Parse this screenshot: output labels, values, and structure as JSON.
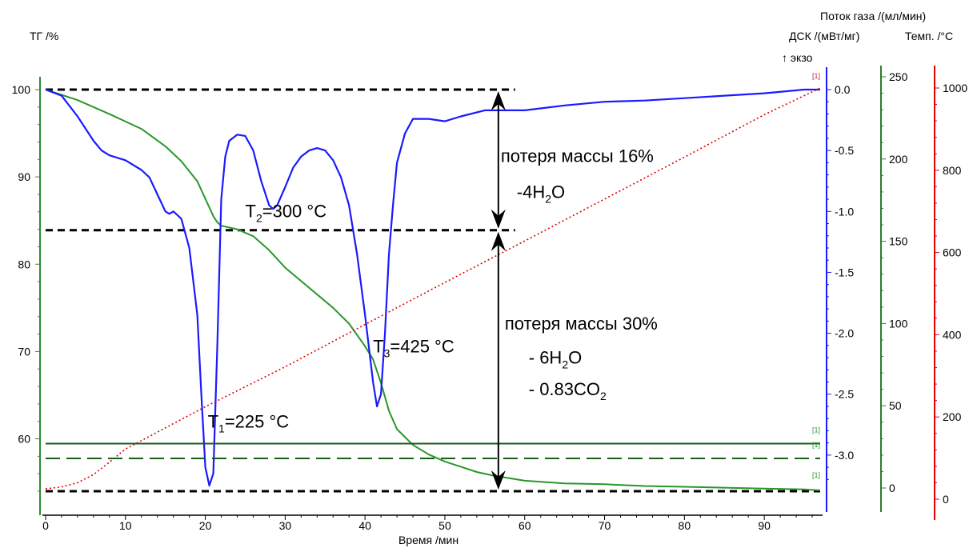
{
  "chart_data": {
    "type": "line",
    "title": "",
    "xlabel": "Время /мин",
    "x_ticks": [
      0,
      10,
      20,
      30,
      40,
      50,
      60,
      70,
      80,
      90
    ],
    "xlim": [
      0,
      97
    ],
    "axes": {
      "tg": {
        "label": "ТГ /%",
        "ticks": [
          60,
          70,
          80,
          90,
          100
        ],
        "ylim": [
          54,
          100
        ],
        "color": "#2e8b2e"
      },
      "dsc": {
        "label": "ДСК /(мВт/мг)",
        "exo": "↑ экзо",
        "ticks": [
          "0.0",
          "-0.5",
          "-1.0",
          "-1.5",
          "-2.0",
          "-2.5",
          "-3.0"
        ],
        "ylim": [
          -3.27,
          0.0
        ],
        "color": "#1a1aff"
      },
      "gas": {
        "label": "Поток газа /(мл/мин)",
        "ticks": [
          0,
          50,
          100,
          150,
          200,
          250
        ],
        "ylim": [
          0,
          250
        ],
        "color": "#2e7d2e"
      },
      "temp": {
        "label": "Темп. /°C",
        "ticks": [
          0,
          200,
          400,
          600,
          800,
          1000
        ],
        "ylim": [
          0,
          1000
        ],
        "color": "#e00000"
      }
    },
    "series": [
      {
        "key": "tg",
        "axis": "tg",
        "color": "#2a962a",
        "style": "solid",
        "x": [
          0,
          4,
          8,
          12,
          15,
          17,
          19,
          20,
          21,
          21.5,
          22,
          24,
          26,
          28,
          30,
          33,
          36,
          38,
          40,
          41,
          42,
          43,
          44,
          46,
          48,
          50,
          52,
          54,
          56,
          58,
          60,
          65,
          70,
          75,
          80,
          85,
          90,
          95,
          97
        ],
        "y": [
          100,
          98.8,
          97.2,
          95.5,
          93.5,
          91.8,
          89.5,
          87.5,
          85.5,
          84.8,
          84.4,
          84,
          83.2,
          81.6,
          79.6,
          77.3,
          75,
          73.2,
          70.6,
          69.1,
          66.4,
          63.2,
          61.1,
          59.3,
          58.2,
          57.4,
          56.8,
          56.2,
          55.8,
          55.5,
          55.2,
          54.9,
          54.8,
          54.6,
          54.5,
          54.4,
          54.3,
          54.2,
          54.1
        ]
      },
      {
        "key": "dsc",
        "axis": "dsc",
        "color": "#1a1aff",
        "style": "solid",
        "x": [
          0,
          2,
          4,
          6,
          7,
          8,
          10,
          12,
          13,
          14,
          15,
          15.5,
          16,
          17,
          18,
          19,
          19.5,
          20,
          20.5,
          21,
          21.5,
          22,
          22.5,
          23,
          24,
          25,
          26,
          27,
          28,
          28.5,
          29,
          30,
          31,
          32,
          33,
          34,
          35,
          36,
          37,
          38,
          39,
          40,
          41,
          41.5,
          42,
          42.5,
          43,
          43.5,
          44,
          45,
          46,
          48,
          50,
          52,
          55,
          58,
          60,
          65,
          70,
          75,
          80,
          85,
          90,
          95,
          97
        ],
        "y": [
          0,
          -0.05,
          -0.22,
          -0.42,
          -0.5,
          -0.54,
          -0.58,
          -0.66,
          -0.72,
          -0.86,
          -1.0,
          -1.02,
          -1.0,
          -1.06,
          -1.3,
          -1.85,
          -2.5,
          -3.1,
          -3.25,
          -3.15,
          -2.1,
          -0.9,
          -0.55,
          -0.42,
          -0.37,
          -0.38,
          -0.5,
          -0.75,
          -0.95,
          -0.98,
          -0.95,
          -0.8,
          -0.64,
          -0.55,
          -0.5,
          -0.48,
          -0.5,
          -0.58,
          -0.72,
          -0.95,
          -1.35,
          -1.85,
          -2.4,
          -2.6,
          -2.5,
          -2.0,
          -1.35,
          -0.95,
          -0.6,
          -0.36,
          -0.24,
          -0.24,
          -0.26,
          -0.22,
          -0.17,
          -0.17,
          -0.17,
          -0.13,
          -0.1,
          -0.09,
          -0.07,
          -0.05,
          -0.03,
          0,
          0
        ]
      },
      {
        "key": "temp",
        "axis": "temp",
        "color": "#e00000",
        "style": "dotted",
        "x": [
          0,
          2,
          4,
          6,
          8,
          10,
          20,
          30,
          40,
          50,
          60,
          70,
          80,
          90,
          97
        ],
        "y": [
          25,
          30,
          40,
          60,
          90,
          122,
          225,
          322,
          425,
          527,
          628,
          730,
          832,
          935,
          1000
        ]
      },
      {
        "key": "gas_solid",
        "axis": "gas",
        "color": "#1a5c1a",
        "style": "solid",
        "x": [
          0,
          97
        ],
        "y": [
          27,
          27
        ]
      },
      {
        "key": "gas_dashed",
        "axis": "gas",
        "color": "#1a5c1a",
        "style": "dashed",
        "x": [
          0,
          97
        ],
        "y": [
          18,
          18
        ]
      }
    ],
    "reference_lines": [
      {
        "axis": "tg",
        "y": 100,
        "x_start": 0,
        "x_end": 58.8
      },
      {
        "axis": "tg",
        "y": 83.9,
        "x_start": 0,
        "x_end": 58.8
      },
      {
        "axis": "tg",
        "y": 54,
        "x_start": 0,
        "x_end": 97
      }
    ],
    "arrows": [
      {
        "x": 56.7,
        "y_from": 100,
        "y_to": 83.9
      },
      {
        "x": 56.7,
        "y_from": 83.9,
        "y_to": 54
      }
    ],
    "annotations": [
      {
        "key": "t1",
        "main": "T",
        "sub": "1",
        "rest": "=225 °C",
        "x": 20.3,
        "y": 61.3
      },
      {
        "key": "t2",
        "main": "T",
        "sub": "2",
        "rest": "=300 °C",
        "x": 25,
        "y": 85.4
      },
      {
        "key": "t3",
        "main": "T",
        "sub": "3",
        "rest": "=425 °C",
        "x": 41,
        "y": 69.9
      },
      {
        "key": "loss1_title",
        "text": "потеря массы 16%",
        "x": 57,
        "y": 91.7
      },
      {
        "key": "loss1_formula",
        "parts": [
          "-4H",
          "2",
          "O"
        ],
        "x": 59,
        "y": 87.6
      },
      {
        "key": "loss2_title",
        "text": "потеря массы 30%",
        "x": 57.5,
        "y": 72.5
      },
      {
        "key": "loss2_formula1",
        "parts": [
          "- 6H",
          "2",
          "O"
        ],
        "x": 60.5,
        "y": 68.6
      },
      {
        "key": "loss2_formula2",
        "parts": [
          "- 0.83CO",
          "2",
          ""
        ],
        "x": 60.5,
        "y": 65.0
      }
    ],
    "curve_markers": "[1]"
  }
}
